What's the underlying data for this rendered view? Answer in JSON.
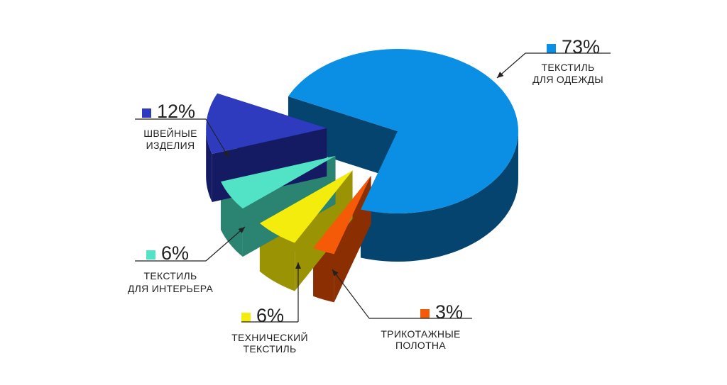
{
  "chart_data": {
    "type": "pie",
    "slices": [
      {
        "name": "ТЕКСТИЛЬ ДЛЯ ОДЕЖДЫ",
        "lines": [
          "ТЕКСТИЛЬ",
          "ДЛЯ  ОДЕЖДЫ"
        ],
        "value": 73,
        "percent_label": "73%",
        "color": "#0a8fe4",
        "side_color": "#04446f"
      },
      {
        "name": "ТРИКОТАЖНЫЕ ПОЛОТНА",
        "lines": [
          "ТРИКОТАЖНЫЕ",
          "ПОЛОТНА"
        ],
        "value": 3,
        "percent_label": "3%",
        "color": "#f55a08",
        "side_color": "#8b2e02"
      },
      {
        "name": "ТЕХНИЧЕСКИЙ ТЕКСТИЛЬ",
        "lines": [
          "ТЕХНИЧЕСКИЙ",
          "ТЕКСТИЛЬ"
        ],
        "value": 6,
        "percent_label": "6%",
        "color": "#f4ec0c",
        "side_color": "#9a9304"
      },
      {
        "name": "ТЕКСТИЛЬ ДЛЯ ИНТЕРЬЕРА",
        "lines": [
          "ТЕКСТИЛЬ",
          "ДЛЯ ИНТЕРЬЕРА"
        ],
        "value": 6,
        "percent_label": "6%",
        "color": "#52e2c6",
        "side_color": "#2b8371"
      },
      {
        "name": "ШВЕЙНЫЕ ИЗДЕЛИЯ",
        "lines": [
          "ШВЕЙНЫЕ",
          "ИЗДЕЛИЯ"
        ],
        "value": 12,
        "percent_label": "12%",
        "color": "#2e3bbf",
        "side_color": "#141b62"
      }
    ],
    "style": "3d-exploded-pie",
    "title": "",
    "legend": "callout labels around pie"
  }
}
